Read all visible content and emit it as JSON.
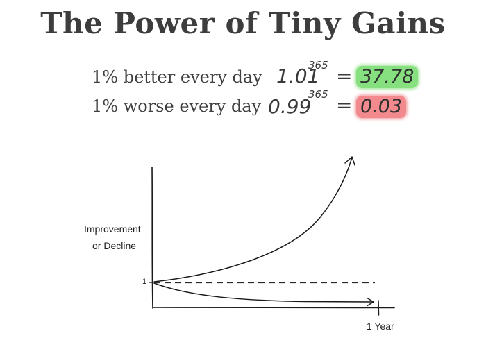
{
  "title": "The Power of Tiny Gains",
  "rows": [
    {
      "label": "1% better every day",
      "base": "1.01",
      "exponent": "365",
      "equals": "=",
      "result": "37.78",
      "highlight_color": "#87e07f"
    },
    {
      "label": "1% worse every day",
      "base": "0.99",
      "exponent": "365",
      "equals": "=",
      "result": "0.03",
      "highlight_color": "#f1898d"
    }
  ],
  "graph": {
    "y_axis_label_line1": "Improvement",
    "y_axis_label_line2": "or Decline",
    "baseline_tick_label": "1",
    "x_end_label": "1 Year",
    "curves": [
      "growth-curve",
      "decline-curve",
      "baseline-dashed"
    ]
  }
}
